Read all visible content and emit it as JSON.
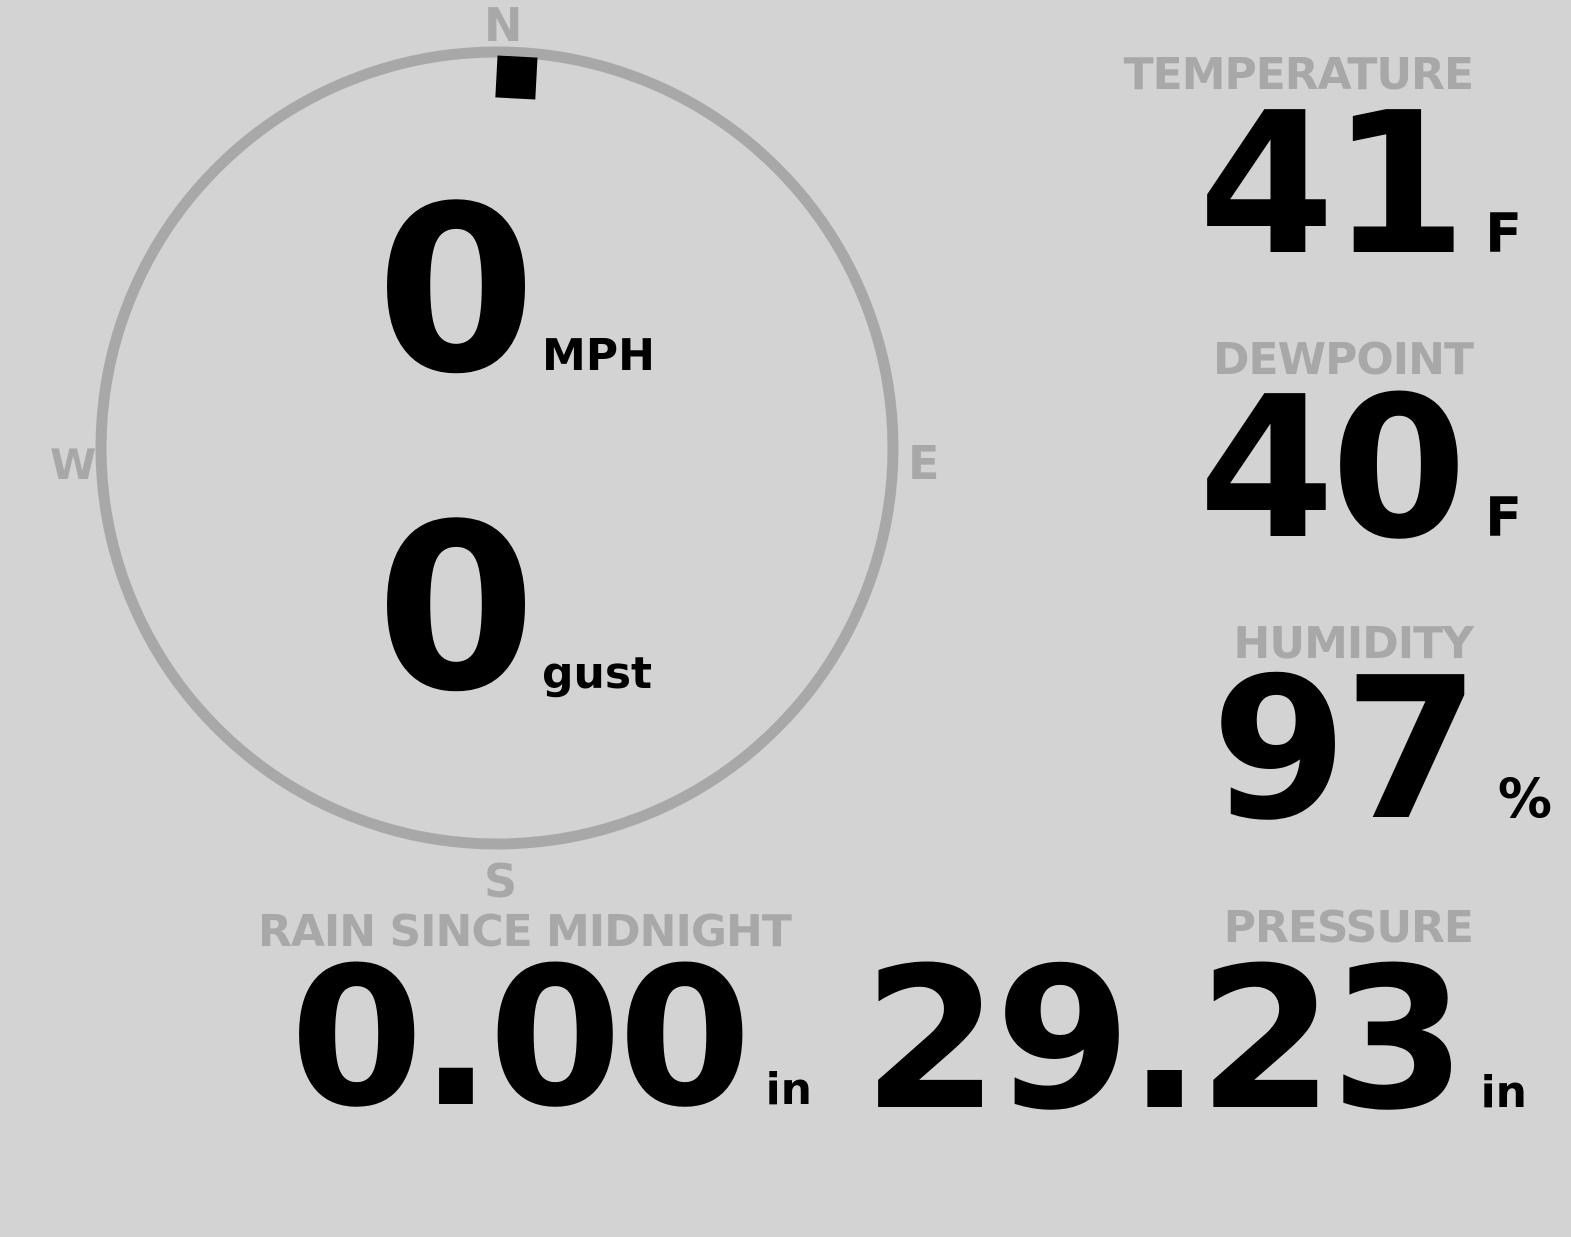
{
  "wind": {
    "compass": {
      "n": "N",
      "s": "S",
      "e": "E",
      "w": "W"
    },
    "direction_deg": 3,
    "speed": "0",
    "speed_unit": "MPH",
    "gust": "0",
    "gust_unit": "gust",
    "colors": {
      "ring": "#a8a8a8",
      "needle": "#000000"
    }
  },
  "temperature": {
    "label": "TEMPERATURE",
    "value": "41",
    "unit": "F"
  },
  "dewpoint": {
    "label": "DEWPOINT",
    "value": "40",
    "unit": "F"
  },
  "humidity": {
    "label": "HUMIDITY",
    "value": "97",
    "unit": "%"
  },
  "rain": {
    "label": "RAIN SINCE MIDNIGHT",
    "value": "0.00",
    "unit": "in"
  },
  "pressure": {
    "label": "PRESSURE",
    "value": "29.23",
    "unit": "in"
  },
  "colors": {
    "background": "#d3d3d3",
    "label": "#a8a8a8",
    "value": "#000000"
  }
}
